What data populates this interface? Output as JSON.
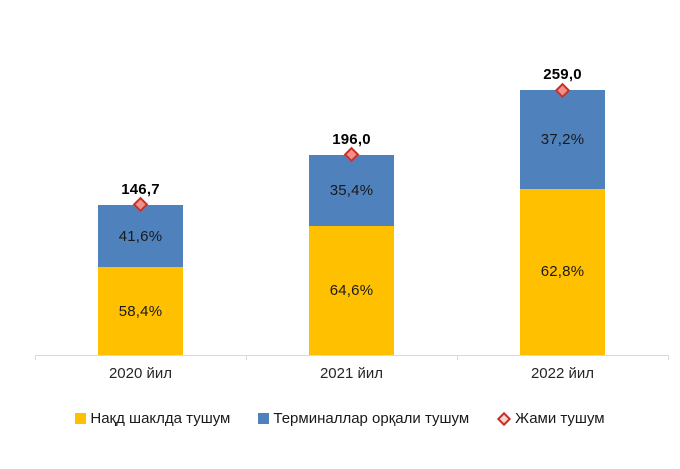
{
  "chart_data": {
    "type": "bar",
    "subtype": "stacked",
    "title": "",
    "categories": [
      "2020 йил",
      "2021 йил",
      "2022 йил"
    ],
    "series": [
      {
        "name": "Нақд шаклда тушум",
        "color": "#FFC000",
        "values": [
          85.7,
          126.6,
          162.7
        ],
        "pct_labels": [
          "58,4%",
          "64,6%",
          "62,8%"
        ]
      },
      {
        "name": "Терминаллар орқали тушум",
        "color": "#4F81BD",
        "values": [
          61.0,
          69.4,
          96.3
        ],
        "pct_labels": [
          "41,6%",
          "35,4%",
          "37,2%"
        ]
      }
    ],
    "totals_series": {
      "name": "Жами тушум",
      "marker": "diamond",
      "marker_color": "#C9302A",
      "values": [
        146.7,
        196.0,
        259.0
      ],
      "labels": [
        "146,7",
        "196,0",
        "259,0"
      ]
    },
    "ylim": [
      0,
      270
    ],
    "grid": false,
    "legend_position": "bottom",
    "axis_color": "#D9D9D9"
  }
}
